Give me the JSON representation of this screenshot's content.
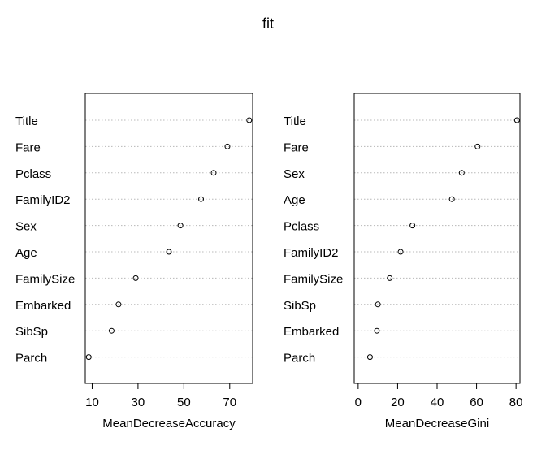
{
  "title": "fit",
  "chart_data": [
    {
      "type": "scatter",
      "subtype": "dotchart",
      "xlabel": "MeanDecreaseAccuracy",
      "ylabel": "",
      "categories": [
        "Title",
        "Fare",
        "Pclass",
        "FamilyID2",
        "Sex",
        "Age",
        "FamilySize",
        "Embarked",
        "SibSp",
        "Parch"
      ],
      "values": [
        78.5,
        69.0,
        63.0,
        57.5,
        48.5,
        43.5,
        29.0,
        21.5,
        18.5,
        8.5
      ],
      "xticks": [
        10,
        30,
        50,
        70
      ],
      "xlim": [
        7.0,
        80.0
      ],
      "grid": "dotted horizontal lines"
    },
    {
      "type": "scatter",
      "subtype": "dotchart",
      "xlabel": "MeanDecreaseGini",
      "ylabel": "",
      "categories": [
        "Title",
        "Fare",
        "Sex",
        "Age",
        "Pclass",
        "FamilyID2",
        "FamilySize",
        "SibSp",
        "Embarked",
        "Parch"
      ],
      "values": [
        80.5,
        60.5,
        52.5,
        47.5,
        27.5,
        21.5,
        16.0,
        10.0,
        9.5,
        6.0
      ],
      "xticks": [
        0,
        20,
        40,
        60,
        80
      ],
      "xlim": [
        -2.0,
        82.0
      ],
      "grid": "dotted horizontal lines"
    }
  ]
}
